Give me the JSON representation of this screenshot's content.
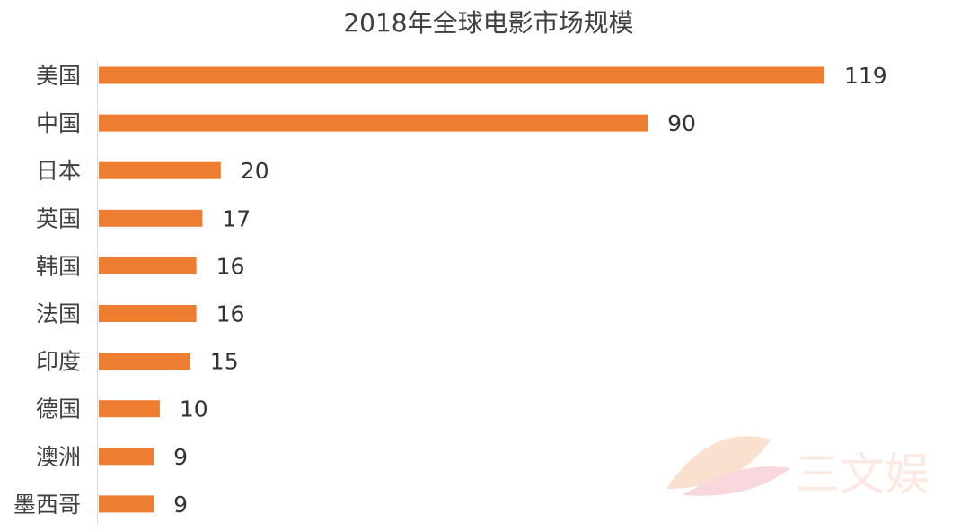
{
  "chart_data": {
    "type": "bar",
    "orientation": "horizontal",
    "title": "2018年全球电影市场规模",
    "categories": [
      "美国",
      "中国",
      "日本",
      "英国",
      "韩国",
      "法国",
      "印度",
      "德国",
      "澳洲",
      "墨西哥"
    ],
    "values": [
      119,
      90,
      20,
      17,
      16,
      16,
      15,
      10,
      9,
      9
    ],
    "data_labels": [
      "119",
      "90",
      "20",
      "17",
      "16",
      "16",
      "15",
      "10",
      "9",
      "9"
    ],
    "xlim": [
      0,
      130
    ],
    "grid": false,
    "legend": "none",
    "bar_color": "#ed7d31"
  },
  "watermark": {
    "text": "三文娱",
    "color": "#f4c9b8"
  }
}
